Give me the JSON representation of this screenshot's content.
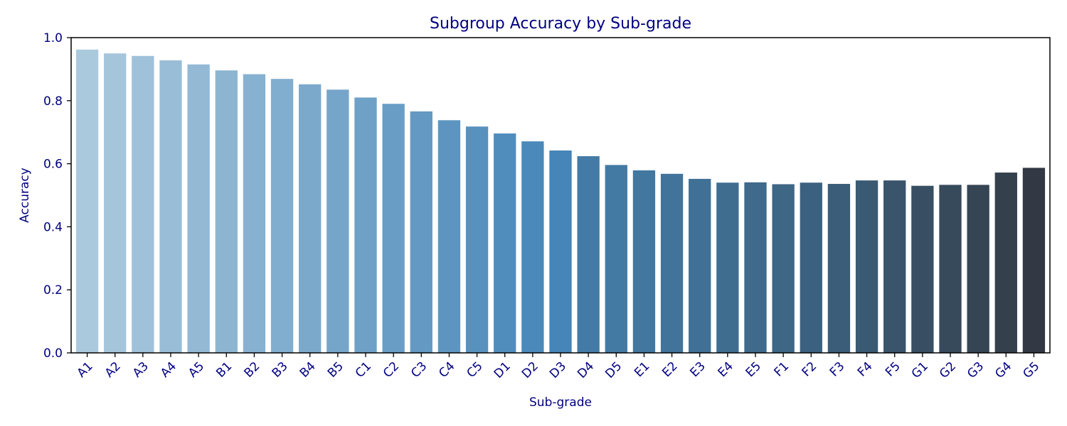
{
  "chart_data": {
    "type": "bar",
    "title": "Subgroup Accuracy by Sub-grade",
    "xlabel": "Sub-grade",
    "ylabel": "Accuracy",
    "ylim": [
      0,
      1.0
    ],
    "yticks": [
      "0.0",
      "0.2",
      "0.4",
      "0.6",
      "0.8",
      "1.0"
    ],
    "grid": false,
    "categories": [
      "A1",
      "A2",
      "A3",
      "A4",
      "A5",
      "B1",
      "B2",
      "B3",
      "B4",
      "B5",
      "C1",
      "C2",
      "C3",
      "C4",
      "C5",
      "D1",
      "D2",
      "D3",
      "D4",
      "D5",
      "E1",
      "E2",
      "E3",
      "E4",
      "E5",
      "F1",
      "F2",
      "F3",
      "F4",
      "F5",
      "G1",
      "G2",
      "G3",
      "G4",
      "G5"
    ],
    "values": [
      0.962,
      0.95,
      0.942,
      0.928,
      0.915,
      0.896,
      0.884,
      0.869,
      0.852,
      0.835,
      0.81,
      0.79,
      0.766,
      0.738,
      0.718,
      0.696,
      0.671,
      0.642,
      0.624,
      0.596,
      0.579,
      0.568,
      0.552,
      0.54,
      0.541,
      0.535,
      0.54,
      0.536,
      0.547,
      0.547,
      0.53,
      0.533,
      0.533,
      0.572,
      0.587
    ],
    "colors": [
      "#abc9dd",
      "#a5c5db",
      "#9fc1d9",
      "#99bdd7",
      "#93b9d5",
      "#8db5d2",
      "#87b1d0",
      "#81adce",
      "#7ba9cc",
      "#75a5c9",
      "#6fa1c7",
      "#699dc5",
      "#6399c3",
      "#5d95c0",
      "#5791be",
      "#518dbc",
      "#4b89ba",
      "#4685b7",
      "#447ba6",
      "#437aa4",
      "#4277a0",
      "#42749b",
      "#417096",
      "#3f6d90",
      "#3f6a8b",
      "#3e6685",
      "#3c6180",
      "#3b5d79",
      "#3a5972",
      "#39546b",
      "#384f63",
      "#374a5c",
      "#364554",
      "#34404c",
      "#323844"
    ]
  }
}
